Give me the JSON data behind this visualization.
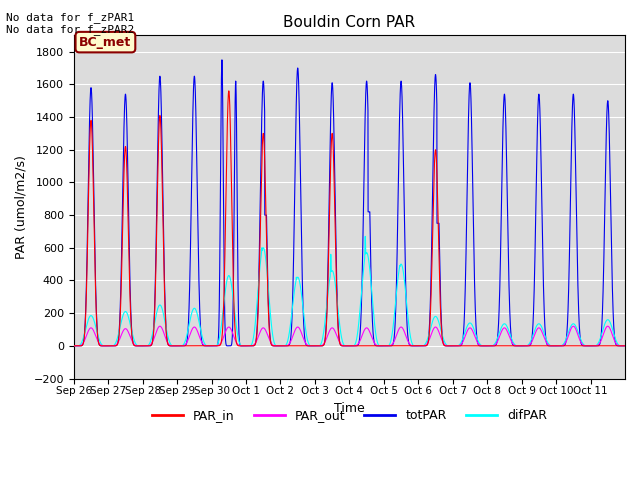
{
  "title": "Bouldin Corn PAR",
  "ylabel": "PAR (umol/m2/s)",
  "xlabel": "Time",
  "ylim": [
    -200,
    1900
  ],
  "yticks": [
    -200,
    0,
    200,
    400,
    600,
    800,
    1000,
    1200,
    1400,
    1600,
    1800
  ],
  "bg_color": "#dcdcdc",
  "line_colors": {
    "PAR_in": "#ff0000",
    "PAR_out": "#ff00ff",
    "totPAR": "#0000ee",
    "difPAR": "#00ffff"
  },
  "num_days": 16,
  "tick_labels": [
    "Sep 26",
    "Sep 27",
    "Sep 28",
    "Sep 29",
    "Sep 30",
    "Oct 1",
    "Oct 2",
    "Oct 3",
    "Oct 4",
    "Oct 5",
    "Oct 6",
    "Oct 7",
    "Oct 8",
    "Oct 9",
    "Oct 10",
    "Oct 11"
  ],
  "totPAR_peaks": [
    1580,
    1540,
    1650,
    1650,
    1620,
    1620,
    1700,
    1610,
    1620,
    1620,
    1660,
    1610,
    1540,
    1540,
    1540,
    1500
  ],
  "totPAR_has_notch": [
    false,
    false,
    false,
    false,
    true,
    true,
    false,
    false,
    true,
    false,
    true,
    false,
    false,
    false,
    false,
    false
  ],
  "totPAR_notch_vals": [
    0,
    0,
    0,
    0,
    570,
    800,
    0,
    0,
    820,
    0,
    750,
    0,
    0,
    0,
    0,
    0
  ],
  "PAR_in_peaks": [
    1380,
    1220,
    1410,
    0,
    1560,
    1300,
    0,
    1300,
    0,
    0,
    1200,
    0,
    0,
    0,
    0,
    0
  ],
  "PAR_in_visible": [
    true,
    true,
    true,
    false,
    true,
    true,
    false,
    true,
    false,
    false,
    true,
    false,
    false,
    false,
    false,
    false
  ],
  "PAR_out_peaks": [
    110,
    105,
    120,
    115,
    115,
    110,
    115,
    110,
    110,
    115,
    115,
    110,
    110,
    110,
    120,
    120
  ],
  "difPAR_peaks": [
    185,
    210,
    250,
    230,
    430,
    600,
    420,
    460,
    570,
    500,
    180,
    140,
    135,
    135,
    135,
    160
  ],
  "difPAR_has_spike": [
    false,
    false,
    false,
    false,
    false,
    true,
    true,
    true,
    true,
    true,
    false,
    false,
    false,
    false,
    false,
    false
  ],
  "difPAR_spike_vals": [
    0,
    0,
    0,
    0,
    0,
    600,
    420,
    560,
    670,
    490,
    0,
    0,
    0,
    0,
    0,
    0
  ]
}
